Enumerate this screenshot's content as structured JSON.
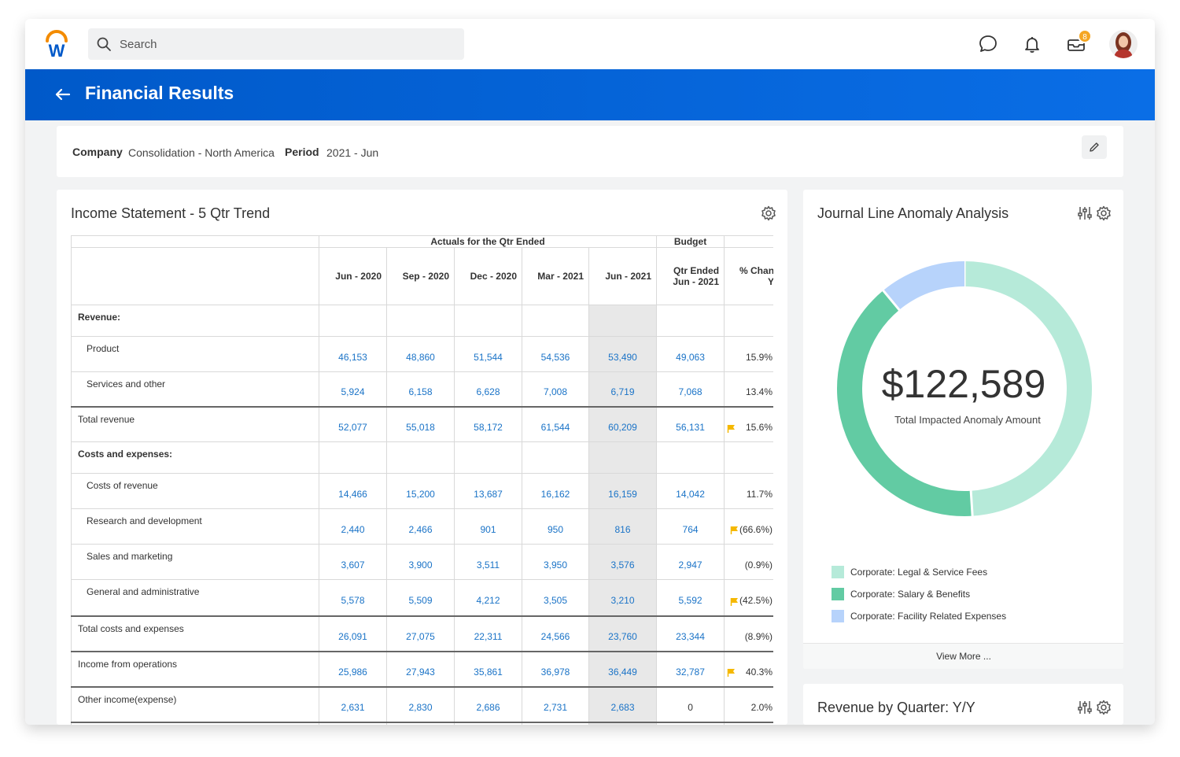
{
  "app": {
    "search_placeholder": "Search",
    "notification_count": "8",
    "icons": [
      "workday-logo",
      "search-icon",
      "chat-icon",
      "bell-icon",
      "inbox-icon",
      "avatar"
    ]
  },
  "header": {
    "title": "Financial Results"
  },
  "filters": {
    "company_label": "Company",
    "company_value": "Consolidation - North America",
    "period_label": "Period",
    "period_value": "2021 - Jun"
  },
  "income": {
    "title": "Income Statement - 5 Qtr Trend",
    "group_actuals": "Actuals for the Qtr Ended",
    "group_budget": "Budget",
    "columns": [
      "Jun - 2020",
      "Sep - 2020",
      "Dec - 2020",
      "Mar - 2021",
      "Jun - 2021"
    ],
    "budget_col_line1": "Qtr Ended",
    "budget_col_line2": "Jun - 2021",
    "pct_col_line1": "% Chan",
    "pct_col_line2": "Y",
    "rows": [
      {
        "label": "Revenue:",
        "type": "section"
      },
      {
        "label": "Product",
        "type": "item",
        "values": [
          "46,153",
          "48,860",
          "51,544",
          "54,536",
          "53,490"
        ],
        "budget": "49,063",
        "pct": "15.9%",
        "flag": false
      },
      {
        "label": "Services and other",
        "type": "item",
        "values": [
          "5,924",
          "6,158",
          "6,628",
          "7,008",
          "6,719"
        ],
        "budget": "7,068",
        "pct": "13.4%",
        "flag": false
      },
      {
        "label": "Total revenue",
        "type": "total",
        "values": [
          "52,077",
          "55,018",
          "58,172",
          "61,544",
          "60,209"
        ],
        "budget": "56,131",
        "pct": "15.6%",
        "flag": true
      },
      {
        "label": "Costs and expenses:",
        "type": "section"
      },
      {
        "label": "Costs of revenue",
        "type": "item",
        "values": [
          "14,466",
          "15,200",
          "13,687",
          "16,162",
          "16,159"
        ],
        "budget": "14,042",
        "pct": "11.7%",
        "flag": false
      },
      {
        "label": "Research and development",
        "type": "item",
        "values": [
          "2,440",
          "2,466",
          "901",
          "950",
          "816"
        ],
        "budget": "764",
        "pct": "(66.6%)",
        "flag": true
      },
      {
        "label": "Sales and marketing",
        "type": "item",
        "values": [
          "3,607",
          "3,900",
          "3,511",
          "3,950",
          "3,576"
        ],
        "budget": "2,947",
        "pct": "(0.9%)",
        "flag": false
      },
      {
        "label": "General and administrative",
        "type": "item",
        "values": [
          "5,578",
          "5,509",
          "4,212",
          "3,505",
          "3,210"
        ],
        "budget": "5,592",
        "pct": "(42.5%)",
        "flag": true
      },
      {
        "label": "Total costs and expenses",
        "type": "total",
        "values": [
          "26,091",
          "27,075",
          "22,311",
          "24,566",
          "23,760"
        ],
        "budget": "23,344",
        "pct": "(8.9%)",
        "flag": false
      },
      {
        "label": "Income from operations",
        "type": "total",
        "values": [
          "25,986",
          "27,943",
          "35,861",
          "36,978",
          "36,449"
        ],
        "budget": "32,787",
        "pct": "40.3%",
        "flag": true
      },
      {
        "label": "Other income(expense)",
        "type": "total2",
        "values": [
          "2,631",
          "2,830",
          "2,686",
          "2,731",
          "2,683"
        ],
        "budget": "0",
        "pct": "2.0%",
        "flag": false
      },
      {
        "label": "",
        "type": "total",
        "values": [
          "",
          "",
          "",
          "",
          ""
        ],
        "budget": "",
        "pct": "",
        "flag": false
      }
    ]
  },
  "anomaly": {
    "title": "Journal Line Anomaly Analysis",
    "amount": "$122,589",
    "caption": "Total Impacted Anomaly Amount",
    "view_more": "View More ...",
    "chart_data": {
      "type": "pie",
      "slices": [
        {
          "name": "Corporate: Legal & Service Fees",
          "value": 49,
          "color": "#b6ead9"
        },
        {
          "name": "Corporate: Salary & Benefits",
          "value": 40,
          "color": "#62cba3"
        },
        {
          "name": "Corporate: Facility Related Expenses",
          "value": 11,
          "color": "#b7d3fb"
        }
      ]
    }
  },
  "revenue_card": {
    "title": "Revenue by Quarter: Y/Y"
  }
}
